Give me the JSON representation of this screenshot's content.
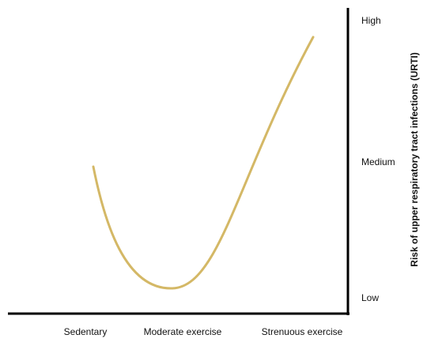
{
  "chart_data": {
    "type": "line",
    "x_categories": [
      "Sedentary",
      "Moderate exercise",
      "Strenuous exercise"
    ],
    "y_categories": [
      "Low",
      "Medium",
      "High"
    ],
    "ylabel": "Risk of upper respiratory tract infections (URTI)",
    "xlabel": "",
    "title": "",
    "grid": false,
    "legend": "none",
    "series": [
      {
        "color": "#d4b866",
        "curve": "J-shaped",
        "points": [
          {
            "x": "Sedentary",
            "y": "Medium"
          },
          {
            "x": "Moderate exercise",
            "y": "Low"
          },
          {
            "x": "Strenuous exercise",
            "y": "High"
          }
        ]
      }
    ]
  },
  "colors": {
    "axis": "#000000",
    "curve": "#d4b866",
    "text": "#111111"
  }
}
